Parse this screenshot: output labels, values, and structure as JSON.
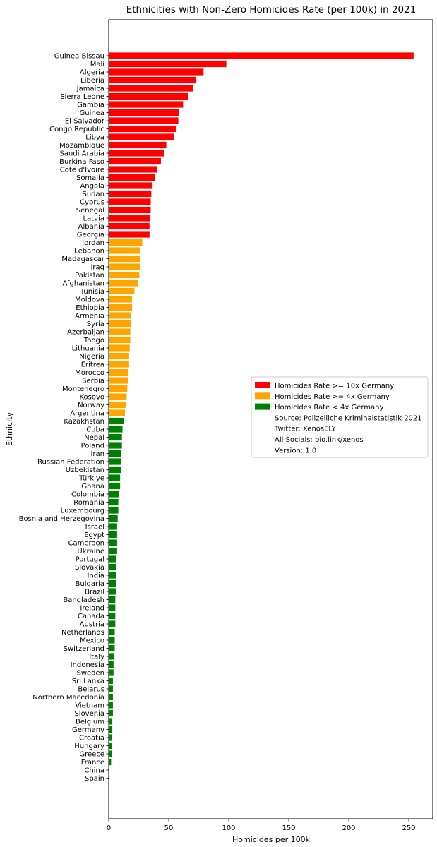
{
  "chart_data": {
    "type": "bar",
    "orientation": "horizontal",
    "title": "Ethnicities with Non-Zero Homicides Rate (per 100k) in 2021",
    "xlabel": "Homicides per 100k",
    "ylabel": "Ethnicity",
    "xlim": [
      0,
      270
    ],
    "xticks": [
      0,
      50,
      100,
      150,
      200,
      250
    ],
    "grid": false,
    "legend_position": "right, center",
    "colors": {
      "red": "#ff0000",
      "orange": "#ffa500",
      "green": "#008000"
    },
    "legend": [
      {
        "label": "Homicides Rate >= 10x Germany",
        "color": "red",
        "swatch": true
      },
      {
        "label": "Homicides Rate >= 4x Germany",
        "color": "orange",
        "swatch": true
      },
      {
        "label": "Homicides Rate < 4x Germany",
        "color": "green",
        "swatch": true
      },
      {
        "label": "Source: Polizeiliche Kriminalstatistik 2021",
        "swatch": false
      },
      {
        "label": "Twitter: XenosELY",
        "swatch": false
      },
      {
        "label": "All Socials: bio.link/xenos",
        "swatch": false
      },
      {
        "label": "Version: 1.0",
        "swatch": false
      }
    ],
    "categories": [
      "Guinea-Bissau",
      "Mali",
      "Algeria",
      "Liberia",
      "Jamaica",
      "Sierra Leone",
      "Gambia",
      "Guinea",
      "El Salvador",
      "Congo Republic",
      "Libya",
      "Mozambique",
      "Saudi Arabia",
      "Burkina Faso",
      "Cote d'Ivoire",
      "Somalia",
      "Angola",
      "Sudan",
      "Cyprus",
      "Senegal",
      "Latvia",
      "Albania",
      "Georgia",
      "Jordan",
      "Lebanon",
      "Madagascar",
      "Iraq",
      "Pakistan",
      "Afghanistan",
      "Tunisia",
      "Moldova",
      "Ethiopia",
      "Armenia",
      "Syria",
      "Azerbaijan",
      "Toogo",
      "Lithuania",
      "Nigeria",
      "Eritrea",
      "Morocco",
      "Serbia",
      "Montenegro",
      "Kosovo",
      "Norway",
      "Argentina",
      "Kazakhstan",
      "Cuba",
      "Nepal",
      "Poland",
      "Iran",
      "Russian Federation",
      "Uzbekistan",
      "Türkiye",
      "Ghana",
      "Colombia",
      "Romania",
      "Luxembourg",
      "Bosnia and Herzegovina",
      "Israel",
      "Egypt",
      "Cameroon",
      "Ukraine",
      "Portugal",
      "Slovakia",
      "India",
      "Bulgaria",
      "Brazil",
      "Bangladesh",
      "Ireland",
      "Canada",
      "Austria",
      "Netherlands",
      "Mexico",
      "Switzerland",
      "Italy",
      "Indonesia",
      "Sweden",
      "Sri Lanka",
      "Belarus",
      "Northern Macedonia",
      "Vietnam",
      "Slovenia",
      "Belgium",
      "Germany",
      "Croatia",
      "Hungary",
      "Greece",
      "France",
      "China",
      "Spain"
    ],
    "values": [
      254,
      98,
      79,
      73,
      70,
      66,
      62,
      58.5,
      58,
      56.5,
      54.5,
      48,
      46,
      43.5,
      40.5,
      38.5,
      36.5,
      35.5,
      35,
      35,
      34.5,
      34,
      34,
      28,
      26.5,
      26.5,
      26,
      25.5,
      24.5,
      21.5,
      19.5,
      19.5,
      18.5,
      18.5,
      18,
      18,
      17.5,
      17,
      17,
      16.5,
      16,
      15.5,
      15,
      14.5,
      13.5,
      12.5,
      11.5,
      11,
      11,
      10.5,
      10.5,
      10,
      9.5,
      9.5,
      8.5,
      8,
      8,
      7.5,
      7,
      7,
      7,
      7,
      6.5,
      6.5,
      6,
      6,
      6,
      5.5,
      5.5,
      5.5,
      5.5,
      5,
      5,
      5,
      4.5,
      4,
      4,
      3.5,
      3.5,
      3.5,
      3.5,
      3.5,
      3,
      3,
      2.5,
      2.5,
      2.5,
      2,
      0.6,
      0.3
    ],
    "groups": [
      "red",
      "red",
      "red",
      "red",
      "red",
      "red",
      "red",
      "red",
      "red",
      "red",
      "red",
      "red",
      "red",
      "red",
      "red",
      "red",
      "red",
      "red",
      "red",
      "red",
      "red",
      "red",
      "red",
      "orange",
      "orange",
      "orange",
      "orange",
      "orange",
      "orange",
      "orange",
      "orange",
      "orange",
      "orange",
      "orange",
      "orange",
      "orange",
      "orange",
      "orange",
      "orange",
      "orange",
      "orange",
      "orange",
      "orange",
      "orange",
      "orange",
      "green",
      "green",
      "green",
      "green",
      "green",
      "green",
      "green",
      "green",
      "green",
      "green",
      "green",
      "green",
      "green",
      "green",
      "green",
      "green",
      "green",
      "green",
      "green",
      "green",
      "green",
      "green",
      "green",
      "green",
      "green",
      "green",
      "green",
      "green",
      "green",
      "green",
      "green",
      "green",
      "green",
      "green",
      "green",
      "green",
      "green",
      "green",
      "green",
      "green",
      "green",
      "green",
      "green",
      "green",
      "green"
    ]
  }
}
